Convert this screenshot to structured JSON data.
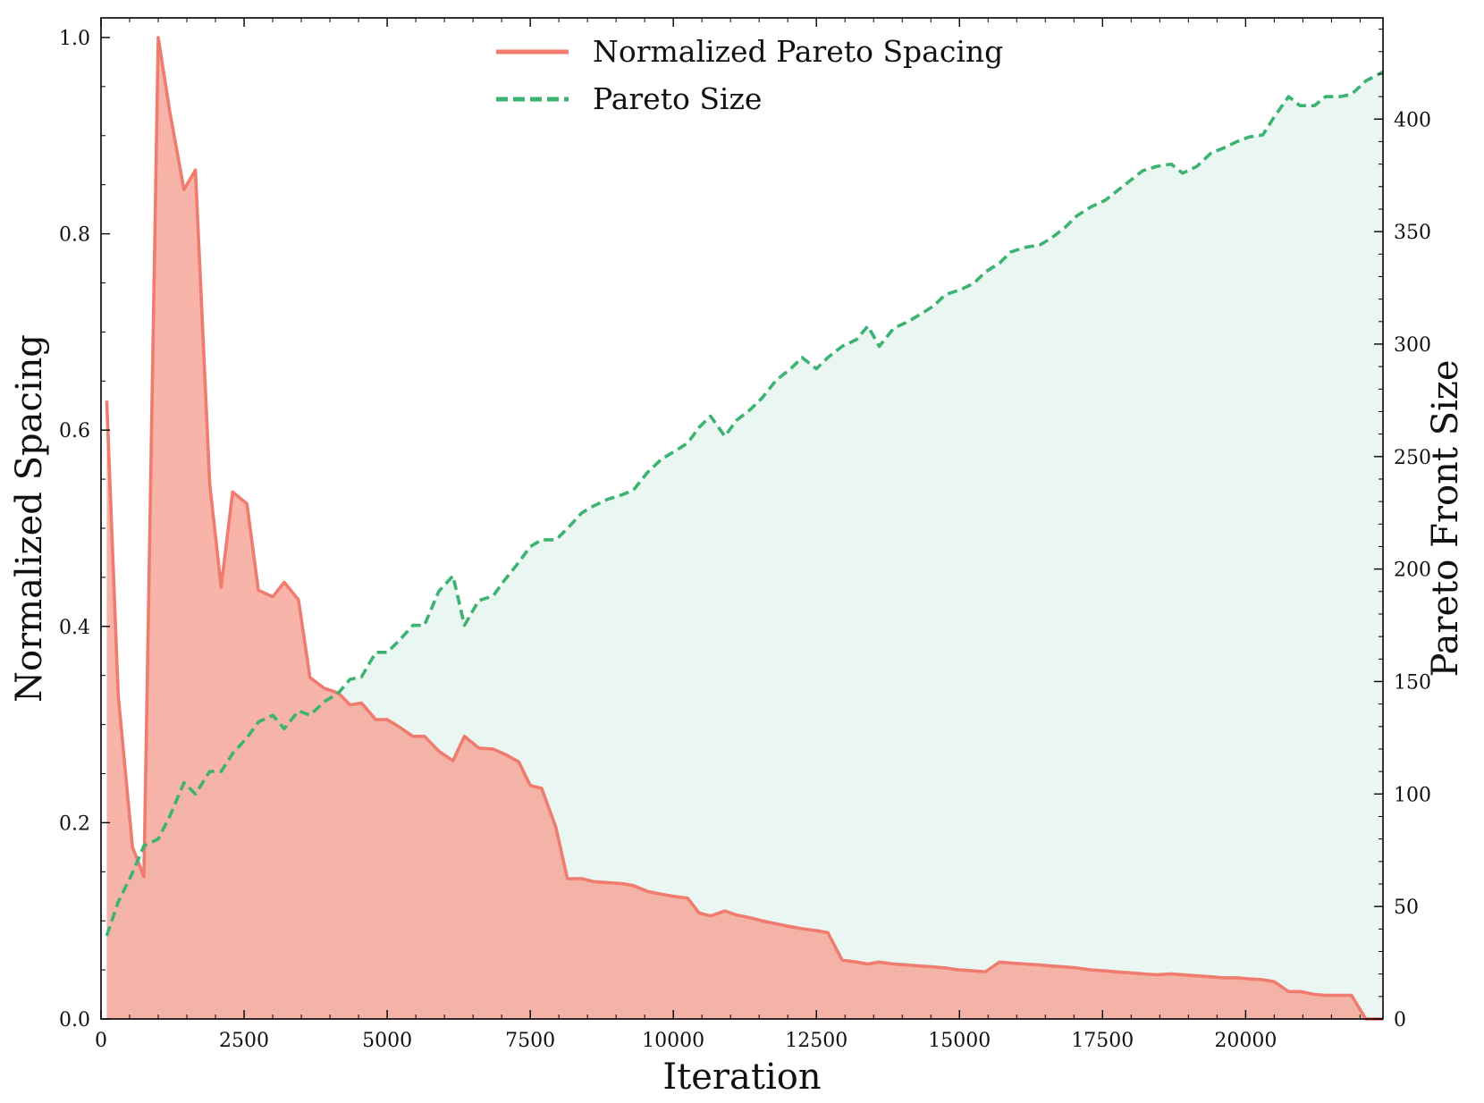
{
  "chart_data": {
    "type": "line",
    "xlabel": "Iteration",
    "ylabel": "Normalized Spacing",
    "y2label": "Pareto Front Size",
    "xlim": [
      0,
      22400
    ],
    "ylim": [
      0,
      1.02
    ],
    "y2lim": [
      0,
      445
    ],
    "xticks": [
      0,
      2500,
      5000,
      7500,
      10000,
      12500,
      15000,
      17500,
      20000
    ],
    "xtick_labels": [
      "0",
      "2500",
      "5000",
      "7500",
      "10000",
      "12500",
      "15000",
      "17500",
      "20000"
    ],
    "yticks": [
      0.0,
      0.2,
      0.4,
      0.6,
      0.8,
      1.0
    ],
    "ytick_labels": [
      "0.0",
      "0.2",
      "0.4",
      "0.6",
      "0.8",
      "1.0"
    ],
    "y2ticks": [
      0,
      50,
      100,
      150,
      200,
      250,
      300,
      350,
      400
    ],
    "y2tick_labels": [
      "0",
      "50",
      "100",
      "150",
      "200",
      "250",
      "300",
      "350",
      "400"
    ],
    "grid": false,
    "legend_position": "top-center",
    "colors": {
      "spacing_line": "#f07b6f",
      "spacing_fill": "#f7a396",
      "size_line": "#3cb371",
      "size_fill": "#eaf6f1"
    },
    "series": [
      {
        "name": "Normalized Pareto Spacing",
        "axis": "left",
        "style": "solid",
        "x": [
          100,
          300,
          550,
          750,
          1000,
          1200,
          1450,
          1650,
          1900,
          2100,
          2300,
          2550,
          2750,
          3000,
          3200,
          3450,
          3650,
          3900,
          4150,
          4350,
          4550,
          4800,
          5000,
          5200,
          5450,
          5650,
          5900,
          6150,
          6350,
          6600,
          6850,
          7050,
          7300,
          7500,
          7700,
          7950,
          8150,
          8400,
          8600,
          8850,
          9100,
          9300,
          9550,
          9800,
          10000,
          10250,
          10450,
          10650,
          10900,
          11100,
          11350,
          11550,
          11800,
          12050,
          12250,
          12500,
          12700,
          12950,
          13200,
          13400,
          13600,
          13850,
          14100,
          14300,
          14550,
          14750,
          15000,
          15250,
          15450,
          15700,
          15900,
          16150,
          16400,
          16600,
          16850,
          17050,
          17300,
          17550,
          17750,
          18000,
          18200,
          18450,
          18700,
          18900,
          19150,
          19400,
          19600,
          19850,
          20050,
          20300,
          20500,
          20750,
          20950,
          21200,
          21400,
          21650,
          21850,
          22100,
          22400
        ],
        "y": [
          0.63,
          0.33,
          0.175,
          0.145,
          1.0,
          0.925,
          0.845,
          0.865,
          0.545,
          0.44,
          0.537,
          0.525,
          0.437,
          0.43,
          0.445,
          0.427,
          0.348,
          0.337,
          0.332,
          0.32,
          0.322,
          0.305,
          0.305,
          0.298,
          0.288,
          0.288,
          0.273,
          0.263,
          0.288,
          0.276,
          0.275,
          0.27,
          0.262,
          0.238,
          0.235,
          0.195,
          0.143,
          0.143,
          0.14,
          0.139,
          0.138,
          0.136,
          0.13,
          0.127,
          0.125,
          0.123,
          0.108,
          0.105,
          0.11,
          0.106,
          0.103,
          0.1,
          0.097,
          0.094,
          0.092,
          0.09,
          0.088,
          0.06,
          0.058,
          0.056,
          0.058,
          0.056,
          0.055,
          0.054,
          0.053,
          0.052,
          0.05,
          0.049,
          0.048,
          0.058,
          0.057,
          0.056,
          0.055,
          0.054,
          0.053,
          0.052,
          0.05,
          0.049,
          0.048,
          0.047,
          0.046,
          0.045,
          0.046,
          0.045,
          0.044,
          0.043,
          0.042,
          0.042,
          0.041,
          0.04,
          0.038,
          0.028,
          0.028,
          0.025,
          0.024,
          0.024,
          0.024,
          0.0,
          0.0
        ]
      },
      {
        "name": "Pareto Size",
        "axis": "right",
        "style": "dashed",
        "x": [
          100,
          300,
          550,
          750,
          1000,
          1200,
          1450,
          1650,
          1900,
          2100,
          2300,
          2550,
          2750,
          3000,
          3200,
          3450,
          3650,
          3900,
          4150,
          4350,
          4550,
          4800,
          5000,
          5200,
          5450,
          5650,
          5900,
          6150,
          6350,
          6600,
          6850,
          7050,
          7300,
          7500,
          7700,
          7950,
          8150,
          8400,
          8600,
          8850,
          9100,
          9300,
          9550,
          9800,
          10000,
          10250,
          10450,
          10650,
          10900,
          11100,
          11350,
          11550,
          11800,
          12050,
          12250,
          12500,
          12700,
          12950,
          13200,
          13400,
          13600,
          13850,
          14100,
          14300,
          14550,
          14750,
          15000,
          15250,
          15450,
          15700,
          15900,
          16150,
          16400,
          16600,
          16850,
          17050,
          17300,
          17550,
          17750,
          18000,
          18200,
          18450,
          18700,
          18900,
          19150,
          19400,
          19600,
          19850,
          20050,
          20300,
          20500,
          20750,
          20950,
          21200,
          21400,
          21650,
          21850,
          22100,
          22400
        ],
        "y": [
          37,
          52,
          65,
          77,
          80,
          90,
          105,
          100,
          110,
          110,
          118,
          125,
          132,
          135,
          129,
          137,
          135,
          141,
          145,
          151,
          152,
          163,
          163,
          168,
          175,
          175,
          190,
          197,
          175,
          186,
          188,
          195,
          203,
          210,
          213,
          213,
          218,
          225,
          228,
          231,
          233,
          235,
          243,
          249,
          252,
          256,
          263,
          268,
          259,
          266,
          271,
          276,
          284,
          289,
          294,
          289,
          294,
          299,
          302,
          308,
          299,
          307,
          310,
          313,
          317,
          322,
          324,
          327,
          332,
          336,
          341,
          343,
          344,
          347,
          352,
          357,
          361,
          364,
          368,
          373,
          377,
          379,
          380,
          376,
          379,
          385,
          387,
          390,
          392,
          393,
          401,
          410,
          406,
          406,
          410,
          410,
          411,
          417,
          421
        ]
      }
    ]
  }
}
